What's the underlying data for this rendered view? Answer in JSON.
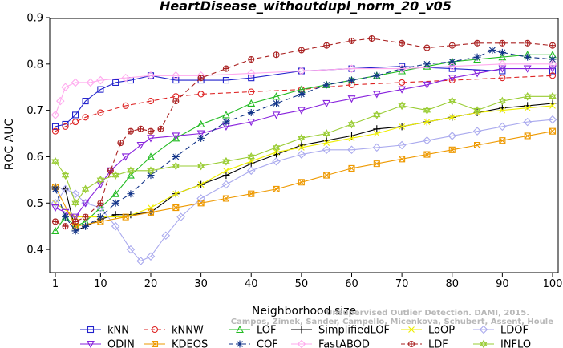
{
  "chart_data": {
    "type": "line",
    "title": "HeartDisease_withoutdupl_norm_20_v05",
    "xlabel": "Neighborhood size",
    "ylabel": "ROC AUC",
    "xlim": [
      1,
      100
    ],
    "ylim": [
      0.35,
      0.9
    ],
    "x_ticks": [
      1,
      10,
      20,
      30,
      40,
      50,
      60,
      70,
      80,
      90,
      100
    ],
    "y_ticks": [
      0.4,
      0.5,
      0.6,
      0.7,
      0.8,
      0.9
    ],
    "grid": false,
    "legend_position": "bottom",
    "watermark": [
      "Unsupervised Outlier Detection. DAMI, 2015.",
      "Campos, Zimek, Sander, Campello, Micenkova, Schubert, Assent, Houle"
    ],
    "series": [
      {
        "name": "kNN",
        "color": "#2222cc",
        "marker": "square",
        "dash": "",
        "x": [
          1,
          3,
          5,
          7,
          10,
          13,
          16,
          20,
          25,
          30,
          35,
          40,
          50,
          60,
          70,
          80,
          90,
          100
        ],
        "y": [
          0.665,
          0.67,
          0.69,
          0.72,
          0.745,
          0.76,
          0.765,
          0.775,
          0.765,
          0.765,
          0.765,
          0.77,
          0.785,
          0.79,
          0.795,
          0.79,
          0.785,
          0.785
        ]
      },
      {
        "name": "kNNW",
        "color": "#dd2222",
        "marker": "circle",
        "dash": "6,4",
        "x": [
          1,
          3,
          5,
          7,
          10,
          15,
          20,
          25,
          30,
          40,
          50,
          60,
          70,
          80,
          90,
          100
        ],
        "y": [
          0.655,
          0.665,
          0.675,
          0.685,
          0.695,
          0.71,
          0.72,
          0.73,
          0.735,
          0.74,
          0.745,
          0.755,
          0.76,
          0.765,
          0.77,
          0.775
        ]
      },
      {
        "name": "LOF",
        "color": "#22bb22",
        "marker": "triangle",
        "dash": "",
        "x": [
          1,
          3,
          5,
          7,
          10,
          13,
          16,
          20,
          25,
          30,
          35,
          40,
          45,
          50,
          55,
          60,
          65,
          70,
          75,
          80,
          85,
          90,
          95,
          100
        ],
        "y": [
          0.44,
          0.47,
          0.45,
          0.46,
          0.49,
          0.52,
          0.56,
          0.6,
          0.64,
          0.67,
          0.69,
          0.715,
          0.73,
          0.745,
          0.755,
          0.765,
          0.775,
          0.785,
          0.795,
          0.805,
          0.81,
          0.815,
          0.82,
          0.82
        ]
      },
      {
        "name": "SimplifiedLOF",
        "color": "#000000",
        "marker": "plus",
        "dash": "",
        "x": [
          1,
          3,
          5,
          7,
          10,
          13,
          16,
          20,
          25,
          30,
          35,
          40,
          45,
          50,
          55,
          60,
          65,
          70,
          75,
          80,
          85,
          90,
          95,
          100
        ],
        "y": [
          0.535,
          0.53,
          0.44,
          0.45,
          0.465,
          0.475,
          0.475,
          0.48,
          0.52,
          0.54,
          0.56,
          0.585,
          0.605,
          0.625,
          0.635,
          0.645,
          0.66,
          0.665,
          0.675,
          0.685,
          0.695,
          0.705,
          0.71,
          0.715
        ]
      },
      {
        "name": "LoOP",
        "color": "#eeee00",
        "marker": "x",
        "dash": "",
        "x": [
          1,
          5,
          10,
          15,
          20,
          25,
          30,
          35,
          40,
          45,
          50,
          55,
          60,
          65,
          70,
          75,
          80,
          85,
          90,
          95,
          100
        ],
        "y": [
          0.5,
          0.47,
          0.47,
          0.47,
          0.49,
          0.52,
          0.54,
          0.57,
          0.59,
          0.61,
          0.62,
          0.63,
          0.64,
          0.65,
          0.665,
          0.675,
          0.685,
          0.695,
          0.7,
          0.705,
          0.71
        ]
      },
      {
        "name": "LDOF",
        "color": "#aaaaee",
        "marker": "diamond",
        "dash": "",
        "x": [
          1,
          3,
          5,
          7,
          10,
          13,
          16,
          18,
          20,
          23,
          26,
          30,
          35,
          40,
          45,
          50,
          55,
          60,
          65,
          70,
          75,
          80,
          85,
          90,
          95,
          100
        ],
        "y": [
          0.5,
          0.53,
          0.52,
          0.5,
          0.49,
          0.45,
          0.4,
          0.375,
          0.385,
          0.43,
          0.47,
          0.51,
          0.54,
          0.57,
          0.59,
          0.605,
          0.615,
          0.615,
          0.62,
          0.625,
          0.635,
          0.645,
          0.655,
          0.665,
          0.675,
          0.68
        ]
      },
      {
        "name": "ODIN",
        "color": "#8822dd",
        "marker": "triangle-down",
        "dash": "",
        "x": [
          1,
          3,
          5,
          7,
          10,
          12,
          15,
          18,
          20,
          25,
          30,
          35,
          40,
          45,
          50,
          55,
          60,
          65,
          70,
          75,
          80,
          85,
          90,
          95,
          100
        ],
        "y": [
          0.49,
          0.48,
          0.47,
          0.5,
          0.54,
          0.57,
          0.6,
          0.625,
          0.64,
          0.645,
          0.65,
          0.665,
          0.675,
          0.69,
          0.7,
          0.715,
          0.725,
          0.735,
          0.745,
          0.755,
          0.77,
          0.78,
          0.79,
          0.79,
          0.79
        ]
      },
      {
        "name": "KDEOS",
        "color": "#ee9900",
        "marker": "square-x",
        "dash": "",
        "x": [
          1,
          5,
          10,
          15,
          20,
          25,
          30,
          35,
          40,
          45,
          50,
          55,
          60,
          65,
          70,
          75,
          80,
          85,
          90,
          95,
          100
        ],
        "y": [
          0.535,
          0.45,
          0.46,
          0.47,
          0.48,
          0.49,
          0.5,
          0.51,
          0.52,
          0.53,
          0.545,
          0.56,
          0.575,
          0.585,
          0.595,
          0.605,
          0.615,
          0.625,
          0.635,
          0.645,
          0.655
        ]
      },
      {
        "name": "COF",
        "color": "#113388",
        "marker": "asterisk",
        "dash": "6,4",
        "x": [
          1,
          3,
          5,
          7,
          10,
          13,
          16,
          20,
          25,
          30,
          35,
          40,
          45,
          50,
          55,
          60,
          65,
          70,
          75,
          80,
          85,
          88,
          90,
          95,
          100
        ],
        "y": [
          0.53,
          0.47,
          0.44,
          0.45,
          0.47,
          0.5,
          0.52,
          0.56,
          0.6,
          0.64,
          0.675,
          0.695,
          0.715,
          0.735,
          0.755,
          0.765,
          0.775,
          0.79,
          0.8,
          0.805,
          0.815,
          0.83,
          0.825,
          0.815,
          0.81
        ]
      },
      {
        "name": "FastABOD",
        "color": "#ffaaee",
        "marker": "diamond",
        "dash": "",
        "x": [
          1,
          2,
          3,
          5,
          8,
          10,
          15,
          20,
          25,
          30,
          40,
          50,
          60,
          70,
          80,
          90,
          100
        ],
        "y": [
          0.69,
          0.72,
          0.75,
          0.76,
          0.76,
          0.765,
          0.77,
          0.775,
          0.775,
          0.775,
          0.78,
          0.785,
          0.79,
          0.79,
          0.795,
          0.8,
          0.8
        ]
      },
      {
        "name": "LDF",
        "color": "#aa2222",
        "marker": "circle-plus",
        "dash": "6,4",
        "x": [
          1,
          3,
          5,
          7,
          10,
          12,
          14,
          16,
          18,
          20,
          22,
          25,
          30,
          35,
          40,
          45,
          50,
          55,
          60,
          64,
          70,
          75,
          80,
          85,
          90,
          95,
          100
        ],
        "y": [
          0.46,
          0.45,
          0.46,
          0.47,
          0.5,
          0.57,
          0.63,
          0.655,
          0.66,
          0.655,
          0.66,
          0.72,
          0.77,
          0.79,
          0.81,
          0.82,
          0.83,
          0.84,
          0.85,
          0.855,
          0.845,
          0.835,
          0.84,
          0.845,
          0.845,
          0.845,
          0.84
        ]
      },
      {
        "name": "INFLO",
        "color": "#99cc33",
        "marker": "star6",
        "dash": "",
        "x": [
          1,
          3,
          5,
          7,
          10,
          13,
          16,
          20,
          25,
          30,
          35,
          40,
          45,
          50,
          55,
          60,
          65,
          70,
          75,
          80,
          85,
          90,
          95,
          100
        ],
        "y": [
          0.59,
          0.56,
          0.5,
          0.53,
          0.55,
          0.56,
          0.57,
          0.57,
          0.58,
          0.58,
          0.59,
          0.6,
          0.62,
          0.64,
          0.65,
          0.67,
          0.69,
          0.71,
          0.7,
          0.72,
          0.7,
          0.72,
          0.73,
          0.73
        ]
      }
    ]
  }
}
